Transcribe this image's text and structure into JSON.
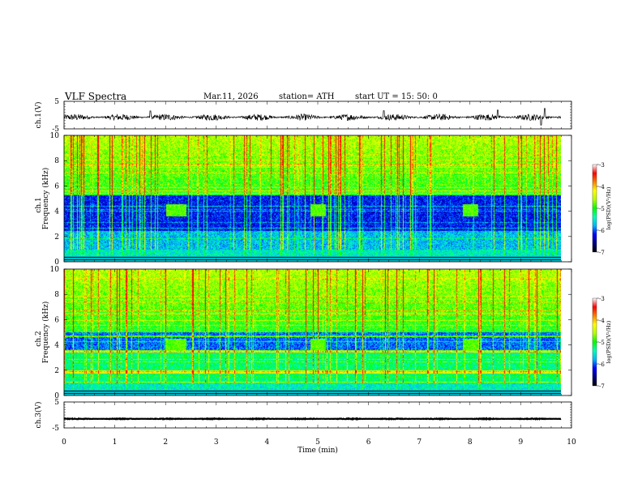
{
  "header": {
    "title": "VLF  Spectra",
    "date": "Mar.11, 2026",
    "station": "station= ATH",
    "start_time": "start  UT  =   15: 50: 0"
  },
  "chart_data": {
    "type": "spectrogram",
    "x_axis": {
      "label": "Time  (min)",
      "min": 0,
      "max": 10,
      "ticks": [
        0,
        1,
        2,
        3,
        4,
        5,
        6,
        7,
        8,
        9,
        10
      ]
    },
    "panels": [
      {
        "id": "ch1-waveform",
        "kind": "line",
        "ylabel": "ch.1(V)",
        "ylim": [
          -5,
          5
        ],
        "y_tick_labels": [
          "5",
          "-5"
        ],
        "baseline": -0.8,
        "noise_amplitude": 1.2,
        "spikes": [
          {
            "t": 9.4,
            "v": -3.6
          },
          {
            "t": 9.47,
            "v": 2.4
          },
          {
            "t": 8.55,
            "v": 1.8
          },
          {
            "t": 6.3,
            "v": 1.6
          },
          {
            "t": 1.7,
            "v": 1.5
          }
        ]
      },
      {
        "id": "ch1-spectrogram",
        "kind": "heatmap",
        "ylabel_top": "ch.1",
        "ylabel": "Frequency  (kHz)",
        "ylim": [
          0,
          10
        ],
        "y_ticks": [
          0,
          2,
          4,
          6,
          8,
          10
        ],
        "quiet_band_khz": [
          2.5,
          5.3
        ],
        "bursts": [
          {
            "t_start": 2.0,
            "t_end": 2.4,
            "f_low": 3.6,
            "f_high": 4.6
          },
          {
            "t_start": 4.85,
            "t_end": 5.15,
            "f_low": 3.6,
            "f_high": 4.6
          },
          {
            "t_start": 7.85,
            "t_end": 8.15,
            "f_low": 3.6,
            "f_high": 4.6
          }
        ],
        "colorbar": {
          "label": "log(PSD)(V²/Hz)",
          "min": -7,
          "max": -3,
          "ticks": [
            "-3",
            "-4",
            "-5",
            "-6",
            "-7"
          ]
        }
      },
      {
        "id": "ch2-spectrogram",
        "kind": "heatmap",
        "ylabel_top": "ch.2",
        "ylabel": "Frequency  (kHz)",
        "ylim": [
          0,
          10
        ],
        "y_ticks": [
          0,
          2,
          4,
          6,
          8,
          10
        ],
        "quiet_band_khz": [
          3.6,
          5.0
        ],
        "bursts": [
          {
            "t_start": 2.0,
            "t_end": 2.4,
            "f_low": 3.6,
            "f_high": 4.5
          },
          {
            "t_start": 4.85,
            "t_end": 5.15,
            "f_low": 3.6,
            "f_high": 4.5
          },
          {
            "t_start": 7.85,
            "t_end": 8.15,
            "f_low": 3.6,
            "f_high": 4.5
          }
        ],
        "colorbar": {
          "label": "log(PSD)(V²/Hz)",
          "min": -7,
          "max": -3,
          "ticks": [
            "-3",
            "-4",
            "-5",
            "-6",
            "-7"
          ]
        }
      },
      {
        "id": "ch3-waveform",
        "kind": "line",
        "ylabel": "ch.3(V)",
        "ylim": [
          -5,
          5
        ],
        "y_tick_labels": [
          "5",
          "-5"
        ],
        "baseline": -1.5,
        "noise_amplitude": 0.15,
        "spikes": []
      }
    ],
    "colors": {
      "colormap": [
        "#000000",
        "#000080",
        "#0000ff",
        "#00b4ff",
        "#00ffb4",
        "#00ff00",
        "#b4ff00",
        "#ffff00",
        "#ff8000",
        "#ff0000",
        "#ffffff"
      ]
    }
  }
}
